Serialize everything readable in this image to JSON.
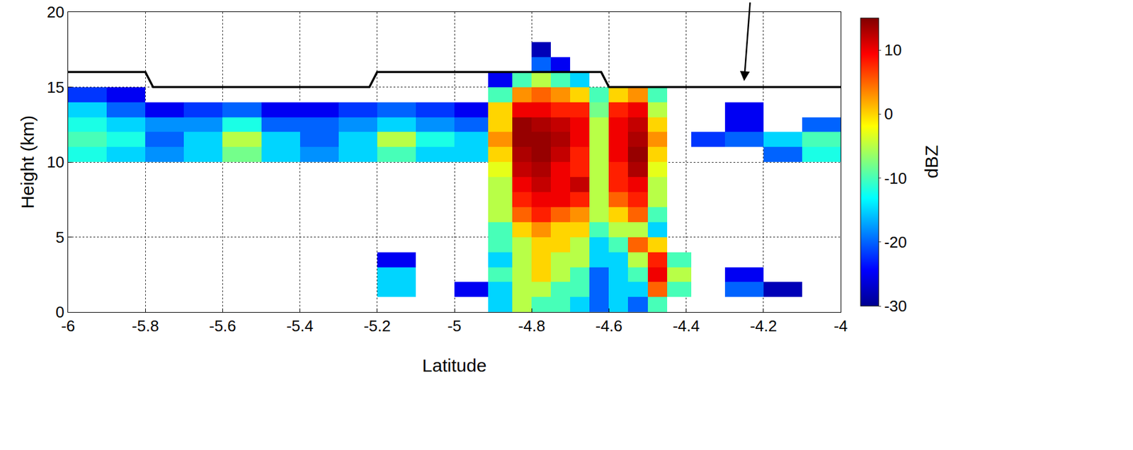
{
  "chart_data": {
    "type": "heatmap",
    "x_label": "Latitude",
    "y_label": "Height (km)",
    "xlim": [
      -6,
      -4
    ],
    "xticks": [
      -6,
      -5.8,
      -5.6,
      -5.4,
      -5.2,
      -5,
      -4.8,
      -4.6,
      -4.4,
      -4.2,
      -4
    ],
    "ylim": [
      0,
      20
    ],
    "yticks": [
      0,
      5,
      10,
      15,
      20
    ],
    "grid": true,
    "x": [
      -5.95,
      -5.85,
      -5.75,
      -5.65,
      -5.55,
      -5.45,
      -5.35,
      -5.25,
      -5.15,
      -5.05,
      -4.95,
      -4.875,
      -4.825,
      -4.775,
      -4.725,
      -4.675,
      -4.625,
      -4.575,
      -4.525,
      -4.475,
      -4.425,
      -4.35,
      -4.25,
      -4.15,
      -4.05
    ],
    "y": [
      0.5,
      1.5,
      2.5,
      3.5,
      4.5,
      5.5,
      6.5,
      7.5,
      8.5,
      9.5,
      10.5,
      11.5,
      12.5,
      13.5,
      14.5,
      15.5,
      16.5,
      17.5
    ],
    "cells": [
      [
        null,
        null,
        null,
        null,
        null,
        null,
        null,
        null,
        null,
        null,
        null,
        -15,
        -5,
        -10,
        -10,
        -15,
        -20,
        -15,
        -20,
        -10,
        null,
        null,
        null,
        null,
        null
      ],
      [
        null,
        null,
        null,
        null,
        null,
        null,
        null,
        null,
        -15,
        null,
        -25,
        -15,
        -5,
        -5,
        -10,
        -10,
        -20,
        -15,
        -15,
        5,
        -10,
        null,
        -20,
        -28,
        null
      ],
      [
        null,
        null,
        null,
        null,
        null,
        null,
        null,
        null,
        -15,
        null,
        null,
        -10,
        -5,
        0,
        -5,
        -10,
        -20,
        -15,
        -10,
        10,
        -5,
        null,
        -25,
        null,
        null
      ],
      [
        null,
        null,
        null,
        null,
        null,
        null,
        null,
        null,
        -25,
        null,
        null,
        -15,
        -5,
        0,
        -5,
        -5,
        -15,
        -15,
        -5,
        8,
        -10,
        null,
        null,
        null,
        null
      ],
      [
        null,
        null,
        null,
        null,
        null,
        null,
        null,
        null,
        null,
        null,
        null,
        -10,
        -5,
        0,
        0,
        -5,
        -15,
        -10,
        5,
        0,
        null,
        null,
        null,
        null,
        null
      ],
      [
        null,
        null,
        null,
        null,
        null,
        null,
        null,
        null,
        null,
        null,
        null,
        -10,
        0,
        3,
        0,
        0,
        -10,
        -5,
        -5,
        -15,
        null,
        null,
        null,
        null,
        null
      ],
      [
        null,
        null,
        null,
        null,
        null,
        null,
        null,
        null,
        null,
        null,
        null,
        -5,
        5,
        8,
        5,
        3,
        -5,
        0,
        5,
        -10,
        null,
        null,
        null,
        null,
        null
      ],
      [
        null,
        null,
        null,
        null,
        null,
        null,
        null,
        null,
        null,
        null,
        null,
        -5,
        8,
        10,
        10,
        8,
        -5,
        5,
        8,
        -5,
        null,
        null,
        null,
        null,
        null
      ],
      [
        null,
        null,
        null,
        null,
        null,
        null,
        null,
        null,
        null,
        null,
        null,
        -5,
        10,
        12,
        10,
        12,
        -5,
        8,
        10,
        -5,
        null,
        null,
        null,
        null,
        null
      ],
      [
        null,
        null,
        null,
        null,
        null,
        null,
        null,
        null,
        null,
        null,
        null,
        -3,
        12,
        13,
        10,
        8,
        -5,
        8,
        13,
        -3,
        null,
        null,
        null,
        null,
        null
      ],
      [
        -12,
        -15,
        -18,
        -15,
        -8,
        -15,
        -18,
        -15,
        -10,
        -15,
        -15,
        0,
        13,
        14,
        12,
        8,
        -5,
        10,
        14,
        0,
        null,
        null,
        null,
        -20,
        -12
      ],
      [
        -10,
        -12,
        -20,
        -15,
        -5,
        -15,
        -20,
        -15,
        -5,
        -12,
        -15,
        3,
        14,
        14,
        13,
        10,
        -5,
        10,
        13,
        3,
        null,
        -22,
        -20,
        -15,
        -10
      ],
      [
        -12,
        -15,
        -18,
        -18,
        -12,
        -20,
        -20,
        -18,
        -15,
        -18,
        -20,
        0,
        14,
        13,
        12,
        10,
        -5,
        10,
        12,
        0,
        null,
        null,
        -25,
        null,
        -20
      ],
      [
        -15,
        -20,
        -25,
        -22,
        -20,
        -25,
        -25,
        -22,
        -20,
        -22,
        -25,
        0,
        10,
        10,
        8,
        8,
        -8,
        8,
        10,
        -5,
        null,
        null,
        -25,
        null,
        null
      ],
      [
        -22,
        -25,
        null,
        null,
        null,
        null,
        null,
        null,
        null,
        null,
        null,
        -10,
        3,
        5,
        3,
        0,
        -10,
        0,
        3,
        -10,
        null,
        null,
        null,
        null,
        null
      ],
      [
        null,
        null,
        null,
        null,
        null,
        null,
        null,
        null,
        null,
        null,
        null,
        -25,
        -10,
        -5,
        -10,
        -15,
        null,
        null,
        null,
        null,
        null,
        null,
        null,
        null,
        null
      ],
      [
        null,
        null,
        null,
        null,
        null,
        null,
        null,
        null,
        null,
        null,
        null,
        null,
        null,
        -20,
        -25,
        null,
        null,
        null,
        null,
        null,
        null,
        null,
        null,
        null,
        null
      ],
      [
        null,
        null,
        null,
        null,
        null,
        null,
        null,
        null,
        null,
        null,
        null,
        null,
        null,
        -28,
        null,
        null,
        null,
        null,
        null,
        null,
        null,
        null,
        null,
        null,
        null
      ]
    ],
    "colorbar": {
      "label": "dBZ",
      "range": [
        -30,
        15
      ],
      "ticks": [
        -30,
        -20,
        -10,
        0,
        10
      ]
    },
    "line": {
      "x": [
        -6,
        -5.8,
        -5.78,
        -5.22,
        -5.2,
        -4.62,
        -4.6,
        -4
      ],
      "y": [
        16,
        16,
        15,
        15,
        16,
        16,
        15,
        15
      ],
      "color": "#000000"
    }
  }
}
